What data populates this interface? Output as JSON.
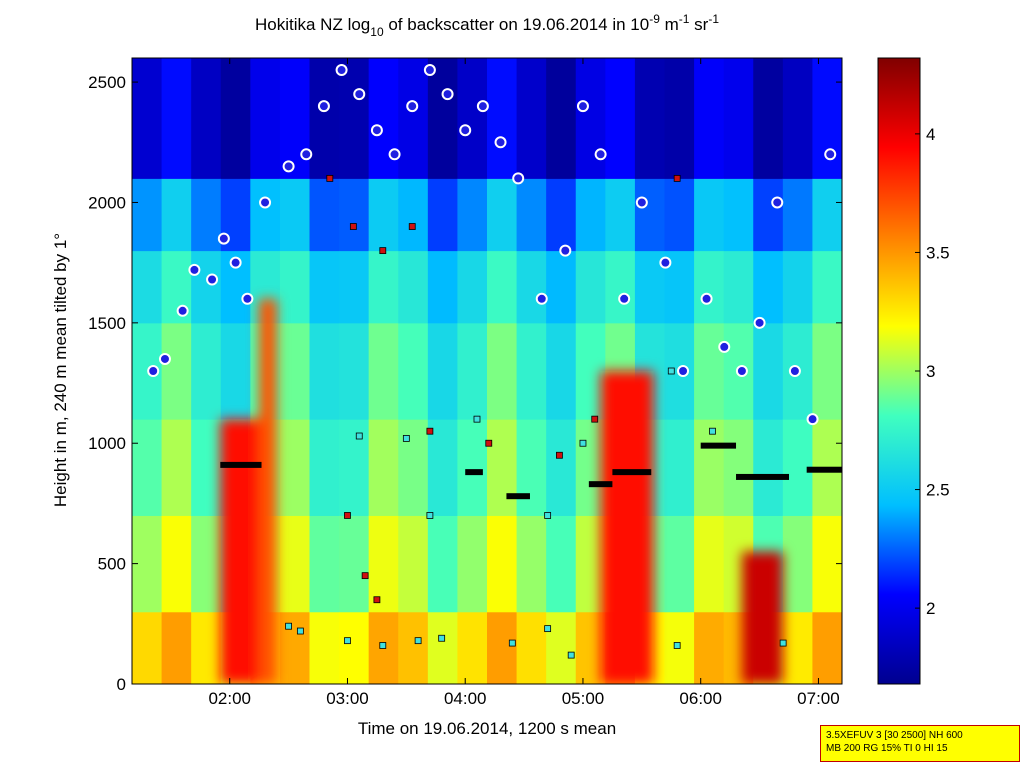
{
  "chart_data": {
    "type": "heatmap",
    "title": {
      "main": "Hokitika NZ log",
      "sub1": "10",
      "mid": " of backscatter on 19.06.2014 in 10",
      "sup1": "-9",
      "unit1": " m",
      "sup2": "-1",
      "unit2": " sr",
      "sup3": "-1"
    },
    "xlabel": "Time on 19.06.2014, 1200 s mean",
    "ylabel": "Height in m, 240 m mean tilted by 1°",
    "x_ticks": [
      {
        "value": 2.0,
        "label": "02:00"
      },
      {
        "value": 3.0,
        "label": "03:00"
      },
      {
        "value": 4.0,
        "label": "04:00"
      },
      {
        "value": 5.0,
        "label": "05:00"
      },
      {
        "value": 6.0,
        "label": "06:00"
      },
      {
        "value": 7.0,
        "label": "07:00"
      }
    ],
    "y_ticks": [
      0,
      500,
      1000,
      1500,
      2000,
      2500
    ],
    "xlim": [
      1.17,
      7.2
    ],
    "ylim": [
      0,
      2600
    ],
    "colorbar": {
      "ticks": [
        "2",
        "2.5",
        "3",
        "3.5",
        "4"
      ],
      "tick_values": [
        2,
        2.5,
        3,
        3.5,
        4
      ],
      "range": [
        1.68,
        4.32
      ],
      "colors": [
        "#00008f",
        "#0000ff",
        "#00bfff",
        "#40ffbf",
        "#ffff00",
        "#ff8000",
        "#ff0000",
        "#800000"
      ]
    },
    "high_backscatter_columns": [
      {
        "x": [
          1.92,
          2.35
        ],
        "top": 1100,
        "level": 3.9
      },
      {
        "x": [
          5.15,
          5.6
        ],
        "top": 1300,
        "level": 3.9
      },
      {
        "x": [
          6.35,
          6.7
        ],
        "top": 550,
        "level": 4.1
      },
      {
        "x": [
          2.25,
          2.4
        ],
        "top": 1600,
        "level": 3.7
      }
    ],
    "layer_segments": [
      {
        "x": [
          1.92,
          2.27
        ],
        "y": 910
      },
      {
        "x": [
          4.0,
          4.15
        ],
        "y": 880
      },
      {
        "x": [
          4.35,
          4.55
        ],
        "y": 780
      },
      {
        "x": [
          5.05,
          5.25
        ],
        "y": 830
      },
      {
        "x": [
          5.25,
          5.58
        ],
        "y": 880
      },
      {
        "x": [
          6.0,
          6.3
        ],
        "y": 990
      },
      {
        "x": [
          6.3,
          6.75
        ],
        "y": 860
      },
      {
        "x": [
          6.9,
          7.2
        ],
        "y": 890
      }
    ],
    "cloud_base_points": [
      {
        "x": 1.35,
        "y": 1300
      },
      {
        "x": 1.45,
        "y": 1350
      },
      {
        "x": 1.6,
        "y": 1550
      },
      {
        "x": 1.7,
        "y": 1720
      },
      {
        "x": 1.85,
        "y": 1680
      },
      {
        "x": 1.95,
        "y": 1850
      },
      {
        "x": 2.05,
        "y": 1750
      },
      {
        "x": 2.15,
        "y": 1600
      },
      {
        "x": 2.3,
        "y": 2000
      },
      {
        "x": 2.5,
        "y": 2150
      },
      {
        "x": 2.65,
        "y": 2200
      },
      {
        "x": 2.8,
        "y": 2400
      },
      {
        "x": 2.95,
        "y": 2550
      },
      {
        "x": 3.1,
        "y": 2450
      },
      {
        "x": 3.25,
        "y": 2300
      },
      {
        "x": 3.4,
        "y": 2200
      },
      {
        "x": 3.55,
        "y": 2400
      },
      {
        "x": 3.7,
        "y": 2550
      },
      {
        "x": 3.85,
        "y": 2450
      },
      {
        "x": 4.0,
        "y": 2300
      },
      {
        "x": 4.15,
        "y": 2400
      },
      {
        "x": 4.3,
        "y": 2250
      },
      {
        "x": 4.45,
        "y": 2100
      },
      {
        "x": 4.65,
        "y": 1600
      },
      {
        "x": 4.85,
        "y": 1800
      },
      {
        "x": 5.0,
        "y": 2400
      },
      {
        "x": 5.15,
        "y": 2200
      },
      {
        "x": 5.35,
        "y": 1600
      },
      {
        "x": 5.5,
        "y": 2000
      },
      {
        "x": 5.7,
        "y": 1750
      },
      {
        "x": 5.85,
        "y": 1300
      },
      {
        "x": 6.05,
        "y": 1600
      },
      {
        "x": 6.2,
        "y": 1400
      },
      {
        "x": 6.35,
        "y": 1300
      },
      {
        "x": 6.5,
        "y": 1500
      },
      {
        "x": 6.65,
        "y": 2000
      },
      {
        "x": 6.8,
        "y": 1300
      },
      {
        "x": 6.95,
        "y": 1100
      },
      {
        "x": 7.1,
        "y": 2200
      }
    ],
    "aerosol_layer_points": [
      {
        "x": 2.5,
        "y": 240
      },
      {
        "x": 2.6,
        "y": 220
      },
      {
        "x": 3.0,
        "y": 180
      },
      {
        "x": 3.3,
        "y": 160
      },
      {
        "x": 3.6,
        "y": 180
      },
      {
        "x": 3.8,
        "y": 190
      },
      {
        "x": 4.4,
        "y": 170
      },
      {
        "x": 4.7,
        "y": 230
      },
      {
        "x": 4.9,
        "y": 120
      },
      {
        "x": 5.8,
        "y": 160
      },
      {
        "x": 6.7,
        "y": 170
      },
      {
        "x": 3.1,
        "y": 1030
      },
      {
        "x": 3.5,
        "y": 1020
      },
      {
        "x": 3.7,
        "y": 700
      },
      {
        "x": 4.1,
        "y": 1100
      },
      {
        "x": 4.7,
        "y": 700
      },
      {
        "x": 5.0,
        "y": 1000
      },
      {
        "x": 5.75,
        "y": 1300
      },
      {
        "x": 6.1,
        "y": 1050
      }
    ],
    "red_square_points": [
      {
        "x": 2.85,
        "y": 2100
      },
      {
        "x": 3.05,
        "y": 1900
      },
      {
        "x": 3.3,
        "y": 1800
      },
      {
        "x": 3.55,
        "y": 1900
      },
      {
        "x": 3.0,
        "y": 700
      },
      {
        "x": 3.15,
        "y": 450
      },
      {
        "x": 3.25,
        "y": 350
      },
      {
        "x": 3.7,
        "y": 1050
      },
      {
        "x": 4.2,
        "y": 1000
      },
      {
        "x": 4.8,
        "y": 950
      },
      {
        "x": 5.1,
        "y": 1100
      },
      {
        "x": 5.8,
        "y": 2100
      }
    ],
    "params_line1": "3.5XEFUV 3 [30 2500] NH 600",
    "params_line2": "MB 200 RG 15% TI 0 HI 15"
  }
}
